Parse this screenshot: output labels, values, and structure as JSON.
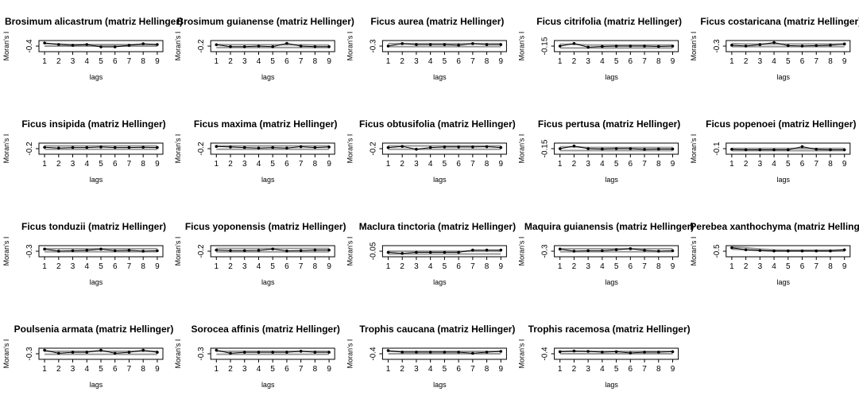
{
  "figure": {
    "xlabel": "lags",
    "ylabel": "Moran's I"
  },
  "chart_data": [
    {
      "type": "line",
      "title": "Brosimum alicastrum (matriz Hellinger)",
      "x": [
        1,
        2,
        3,
        4,
        5,
        6,
        7,
        8,
        9
      ],
      "yticks": [
        "-0.4"
      ],
      "ylim": [
        -0.5,
        0.2
      ],
      "values": [
        0.05,
        -0.05,
        -0.1,
        -0.05,
        -0.2,
        -0.2,
        -0.1,
        0.0,
        -0.05
      ],
      "env_upper": [
        0.0,
        -0.02,
        -0.05,
        -0.05,
        -0.05,
        -0.05,
        -0.05,
        -0.05,
        -0.05
      ],
      "env_lower": [
        -0.15,
        -0.15,
        -0.15,
        -0.15,
        -0.15,
        -0.15,
        -0.15,
        -0.15,
        -0.15
      ]
    },
    {
      "type": "line",
      "title": "Brosimum guianense (matriz Hellinger)",
      "x": [
        1,
        2,
        3,
        4,
        5,
        6,
        7,
        8,
        9
      ],
      "yticks": [
        "-0.2"
      ],
      "ylim": [
        -0.3,
        0.1
      ],
      "values": [
        -0.05,
        -0.12,
        -0.12,
        -0.1,
        -0.12,
        0.0,
        -0.1,
        -0.12,
        -0.12
      ],
      "env_upper": [
        -0.04,
        -0.05,
        -0.05,
        -0.05,
        -0.05,
        -0.05,
        -0.05,
        -0.06,
        -0.06
      ],
      "env_lower": [
        -0.15,
        -0.15,
        -0.15,
        -0.15,
        -0.15,
        -0.15,
        -0.15,
        -0.15,
        -0.15
      ]
    },
    {
      "type": "line",
      "title": "Ficus aurea (matriz Hellinger)",
      "x": [
        1,
        2,
        3,
        4,
        5,
        6,
        7,
        8,
        9
      ],
      "yticks": [
        "-0.3"
      ],
      "ylim": [
        -0.4,
        0.15
      ],
      "values": [
        -0.12,
        0.0,
        -0.05,
        -0.05,
        -0.05,
        -0.08,
        0.0,
        -0.05,
        -0.05
      ],
      "env_upper": [
        0.0,
        0.0,
        0.0,
        0.0,
        0.0,
        0.0,
        0.0,
        0.0,
        0.0
      ],
      "env_lower": [
        -0.15,
        -0.15,
        -0.15,
        -0.15,
        -0.15,
        -0.15,
        -0.15,
        -0.15,
        -0.15
      ]
    },
    {
      "type": "line",
      "title": "Ficus citrifolia (matriz Hellinger)",
      "x": [
        1,
        2,
        3,
        4,
        5,
        6,
        7,
        8,
        9
      ],
      "yticks": [
        "-0.15"
      ],
      "ylim": [
        -0.2,
        0.1
      ],
      "values": [
        -0.05,
        0.02,
        -0.08,
        -0.06,
        -0.05,
        -0.05,
        -0.05,
        -0.06,
        -0.05
      ],
      "env_upper": [
        0.0,
        0.0,
        -0.02,
        -0.02,
        -0.02,
        -0.02,
        -0.02,
        -0.02,
        -0.02
      ],
      "env_lower": [
        -0.1,
        -0.1,
        -0.1,
        -0.1,
        -0.1,
        -0.1,
        -0.1,
        -0.1,
        -0.1
      ]
    },
    {
      "type": "line",
      "title": "Ficus costaricana (matriz Hellinger)",
      "x": [
        1,
        2,
        3,
        4,
        5,
        6,
        7,
        8,
        9
      ],
      "yticks": [
        "-0.3"
      ],
      "ylim": [
        -0.4,
        0.15
      ],
      "values": [
        -0.08,
        -0.12,
        -0.05,
        0.05,
        -0.1,
        -0.12,
        -0.1,
        -0.08,
        -0.02
      ],
      "env_upper": [
        0.0,
        -0.02,
        -0.02,
        -0.02,
        -0.02,
        -0.02,
        -0.02,
        -0.02,
        -0.02
      ],
      "env_lower": [
        -0.15,
        -0.15,
        -0.15,
        -0.15,
        -0.15,
        -0.15,
        -0.15,
        -0.15,
        -0.15
      ]
    },
    {
      "type": "line",
      "title": "Ficus insipida (matriz Hellinger)",
      "x": [
        1,
        2,
        3,
        4,
        5,
        6,
        7,
        8,
        9
      ],
      "yticks": [
        "-0.2"
      ],
      "ylim": [
        -0.3,
        0.1
      ],
      "values": [
        -0.05,
        -0.08,
        -0.06,
        -0.06,
        -0.04,
        -0.06,
        -0.06,
        -0.05,
        -0.06
      ],
      "env_upper": [
        0.0,
        0.0,
        0.0,
        0.0,
        0.0,
        0.0,
        0.0,
        0.0,
        0.0
      ],
      "env_lower": [
        -0.12,
        -0.12,
        -0.12,
        -0.12,
        -0.12,
        -0.12,
        -0.12,
        -0.12,
        -0.12
      ]
    },
    {
      "type": "line",
      "title": "Ficus maxima (matriz Hellinger)",
      "x": [
        1,
        2,
        3,
        4,
        5,
        6,
        7,
        8,
        9
      ],
      "yticks": [
        "-0.2"
      ],
      "ylim": [
        -0.3,
        0.1
      ],
      "values": [
        -0.02,
        -0.04,
        -0.06,
        -0.08,
        -0.06,
        -0.08,
        -0.03,
        -0.06,
        -0.04
      ],
      "env_upper": [
        0.0,
        0.0,
        0.0,
        0.0,
        0.0,
        0.0,
        0.0,
        0.0,
        0.0
      ],
      "env_lower": [
        -0.12,
        -0.12,
        -0.12,
        -0.12,
        -0.12,
        -0.12,
        -0.12,
        -0.12,
        -0.12
      ]
    },
    {
      "type": "line",
      "title": "Ficus obtusifolia (matriz Hellinger)",
      "x": [
        1,
        2,
        3,
        4,
        5,
        6,
        7,
        8,
        9
      ],
      "yticks": [
        "-0.2"
      ],
      "ylim": [
        -0.3,
        0.1
      ],
      "values": [
        -0.06,
        -0.02,
        -0.12,
        -0.06,
        -0.04,
        -0.04,
        -0.04,
        -0.03,
        -0.06
      ],
      "env_upper": [
        0.0,
        0.0,
        0.0,
        0.0,
        0.0,
        0.0,
        0.0,
        0.0,
        0.0
      ],
      "env_lower": [
        -0.12,
        -0.12,
        -0.12,
        -0.12,
        -0.12,
        -0.12,
        -0.12,
        -0.12,
        -0.12
      ]
    },
    {
      "type": "line",
      "title": "Ficus pertusa (matriz Hellinger)",
      "x": [
        1,
        2,
        3,
        4,
        5,
        6,
        7,
        8,
        9
      ],
      "yticks": [
        "-0.15"
      ],
      "ylim": [
        -0.2,
        0.1
      ],
      "values": [
        -0.05,
        0.02,
        -0.05,
        -0.06,
        -0.05,
        -0.05,
        -0.07,
        -0.06,
        -0.06
      ],
      "env_upper": [
        0.0,
        0.0,
        -0.02,
        -0.02,
        -0.02,
        -0.02,
        -0.02,
        -0.02,
        -0.02
      ],
      "env_lower": [
        -0.1,
        -0.1,
        -0.1,
        -0.1,
        -0.1,
        -0.1,
        -0.1,
        -0.1,
        -0.1
      ]
    },
    {
      "type": "line",
      "title": "Ficus popenoei (matriz Hellinger)",
      "x": [
        1,
        2,
        3,
        4,
        5,
        6,
        7,
        8,
        9
      ],
      "yticks": [
        "-0.1"
      ],
      "ylim": [
        -0.15,
        0.1
      ],
      "values": [
        -0.04,
        -0.05,
        -0.05,
        -0.05,
        -0.05,
        0.02,
        -0.04,
        -0.05,
        -0.05
      ],
      "env_upper": [
        -0.02,
        -0.02,
        -0.02,
        -0.02,
        -0.02,
        -0.02,
        -0.02,
        -0.02,
        -0.02
      ],
      "env_lower": [
        -0.07,
        -0.07,
        -0.07,
        -0.07,
        -0.07,
        -0.07,
        -0.07,
        -0.07,
        -0.07
      ]
    },
    {
      "type": "line",
      "title": "Ficus tonduzii (matriz Hellinger)",
      "x": [
        1,
        2,
        3,
        4,
        5,
        6,
        7,
        8,
        9
      ],
      "yticks": [
        "-0.3"
      ],
      "ylim": [
        -0.4,
        0.15
      ],
      "values": [
        -0.02,
        -0.12,
        -0.1,
        -0.08,
        -0.02,
        -0.1,
        -0.08,
        -0.12,
        -0.1
      ],
      "env_upper": [
        0.0,
        0.0,
        0.0,
        0.0,
        0.0,
        0.0,
        0.0,
        0.0,
        0.0
      ],
      "env_lower": [
        -0.15,
        -0.15,
        -0.15,
        -0.15,
        -0.15,
        -0.15,
        -0.15,
        -0.15,
        -0.15
      ]
    },
    {
      "type": "line",
      "title": "Ficus yoponensis (matriz Hellinger)",
      "x": [
        1,
        2,
        3,
        4,
        5,
        6,
        7,
        8,
        9
      ],
      "yticks": [
        "-0.2"
      ],
      "ylim": [
        -0.3,
        0.1
      ],
      "values": [
        -0.06,
        -0.08,
        -0.08,
        -0.07,
        -0.02,
        -0.09,
        -0.08,
        -0.06,
        -0.06
      ],
      "env_upper": [
        0.0,
        0.0,
        0.0,
        0.0,
        0.0,
        0.0,
        0.0,
        0.0,
        0.0
      ],
      "env_lower": [
        -0.12,
        -0.12,
        -0.12,
        -0.12,
        -0.12,
        -0.12,
        -0.12,
        -0.12,
        -0.12
      ]
    },
    {
      "type": "line",
      "title": "Maclura tinctoria (matriz Hellinger)",
      "x": [
        1,
        2,
        3,
        4,
        5,
        6,
        7,
        8,
        9
      ],
      "yticks": [
        "-0.05"
      ],
      "ylim": [
        -0.1,
        0.1
      ],
      "values": [
        -0.02,
        -0.04,
        -0.02,
        -0.02,
        -0.02,
        -0.02,
        0.02,
        0.02,
        0.02
      ],
      "env_upper": [
        0.0,
        0.0,
        0.0,
        0.0,
        0.0,
        0.0,
        0.0,
        0.0,
        0.0
      ],
      "env_lower": [
        -0.05,
        -0.05,
        -0.05,
        -0.05,
        -0.05,
        -0.05,
        -0.05,
        -0.05,
        -0.05
      ]
    },
    {
      "type": "line",
      "title": "Maquira guianensis (matriz Hellinger)",
      "x": [
        1,
        2,
        3,
        4,
        5,
        6,
        7,
        8,
        9
      ],
      "yticks": [
        "-0.3"
      ],
      "ylim": [
        -0.4,
        0.15
      ],
      "values": [
        -0.02,
        -0.12,
        -0.1,
        -0.1,
        -0.05,
        0.0,
        -0.08,
        -0.12,
        -0.1
      ],
      "env_upper": [
        0.0,
        0.0,
        0.0,
        0.0,
        0.0,
        0.0,
        0.0,
        0.0,
        0.0
      ],
      "env_lower": [
        -0.15,
        -0.15,
        -0.15,
        -0.15,
        -0.15,
        -0.15,
        -0.15,
        -0.15,
        -0.15
      ]
    },
    {
      "type": "line",
      "title": "Perebea xanthochyma (matriz Hellinger)",
      "x": [
        1,
        2,
        3,
        4,
        5,
        6,
        7,
        8,
        9
      ],
      "yticks": [
        "-0.5"
      ],
      "ylim": [
        -0.6,
        0.2
      ],
      "values": [
        0.05,
        -0.1,
        -0.15,
        -0.18,
        -0.18,
        -0.18,
        -0.18,
        -0.18,
        -0.1
      ],
      "env_upper": [
        0.1,
        0.05,
        -0.05,
        -0.1,
        -0.12,
        -0.12,
        -0.12,
        -0.12,
        -0.1
      ],
      "env_lower": [
        -0.05,
        -0.1,
        -0.15,
        -0.2,
        -0.2,
        -0.2,
        -0.2,
        -0.2,
        -0.2
      ]
    },
    {
      "type": "line",
      "title": "Poulsenia armata (matriz Hellinger)",
      "x": [
        1,
        2,
        3,
        4,
        5,
        6,
        7,
        8,
        9
      ],
      "yticks": [
        "-0.3"
      ],
      "ylim": [
        -0.4,
        0.15
      ],
      "values": [
        0.05,
        -0.1,
        -0.05,
        -0.05,
        0.05,
        -0.1,
        -0.05,
        0.05,
        -0.05
      ],
      "env_upper": [
        0.0,
        0.0,
        0.0,
        0.0,
        0.0,
        0.0,
        0.0,
        0.0,
        0.0
      ],
      "env_lower": [
        -0.15,
        -0.15,
        -0.15,
        -0.15,
        -0.15,
        -0.15,
        -0.15,
        -0.15,
        -0.15
      ]
    },
    {
      "type": "line",
      "title": "Sorocea affinis (matriz Hellinger)",
      "x": [
        1,
        2,
        3,
        4,
        5,
        6,
        7,
        8,
        9
      ],
      "yticks": [
        "-0.3"
      ],
      "ylim": [
        -0.4,
        0.15
      ],
      "values": [
        0.05,
        -0.1,
        -0.05,
        -0.05,
        -0.05,
        -0.05,
        0.0,
        -0.05,
        -0.05
      ],
      "env_upper": [
        0.0,
        0.0,
        0.0,
        0.0,
        0.0,
        0.0,
        0.0,
        0.0,
        0.0
      ],
      "env_lower": [
        -0.15,
        -0.15,
        -0.15,
        -0.15,
        -0.15,
        -0.15,
        -0.15,
        -0.15,
        -0.15
      ]
    },
    {
      "type": "line",
      "title": "Trophis caucana (matriz Hellinger)",
      "x": [
        1,
        2,
        3,
        4,
        5,
        6,
        7,
        8,
        9
      ],
      "yticks": [
        "-0.4"
      ],
      "ylim": [
        -0.5,
        0.2
      ],
      "values": [
        0.05,
        -0.05,
        -0.05,
        -0.05,
        -0.05,
        -0.05,
        -0.12,
        -0.05,
        0.0
      ],
      "env_upper": [
        0.0,
        0.0,
        0.0,
        0.0,
        0.0,
        0.0,
        0.0,
        0.0,
        0.0
      ],
      "env_lower": [
        -0.15,
        -0.15,
        -0.15,
        -0.15,
        -0.15,
        -0.15,
        -0.15,
        -0.15,
        -0.15
      ]
    },
    {
      "type": "line",
      "title": "Trophis racemosa (matriz Hellinger)",
      "x": [
        1,
        2,
        3,
        4,
        5,
        6,
        7,
        8,
        9
      ],
      "yticks": [
        "-0.4"
      ],
      "ylim": [
        -0.5,
        0.2
      ],
      "values": [
        -0.02,
        0.02,
        0.0,
        -0.05,
        -0.02,
        -0.1,
        -0.05,
        -0.05,
        -0.02
      ],
      "env_upper": [
        0.0,
        0.0,
        0.0,
        0.0,
        0.0,
        0.0,
        0.0,
        0.0,
        0.0
      ],
      "env_lower": [
        -0.15,
        -0.15,
        -0.15,
        -0.15,
        -0.15,
        -0.15,
        -0.15,
        -0.15,
        -0.15
      ]
    }
  ]
}
